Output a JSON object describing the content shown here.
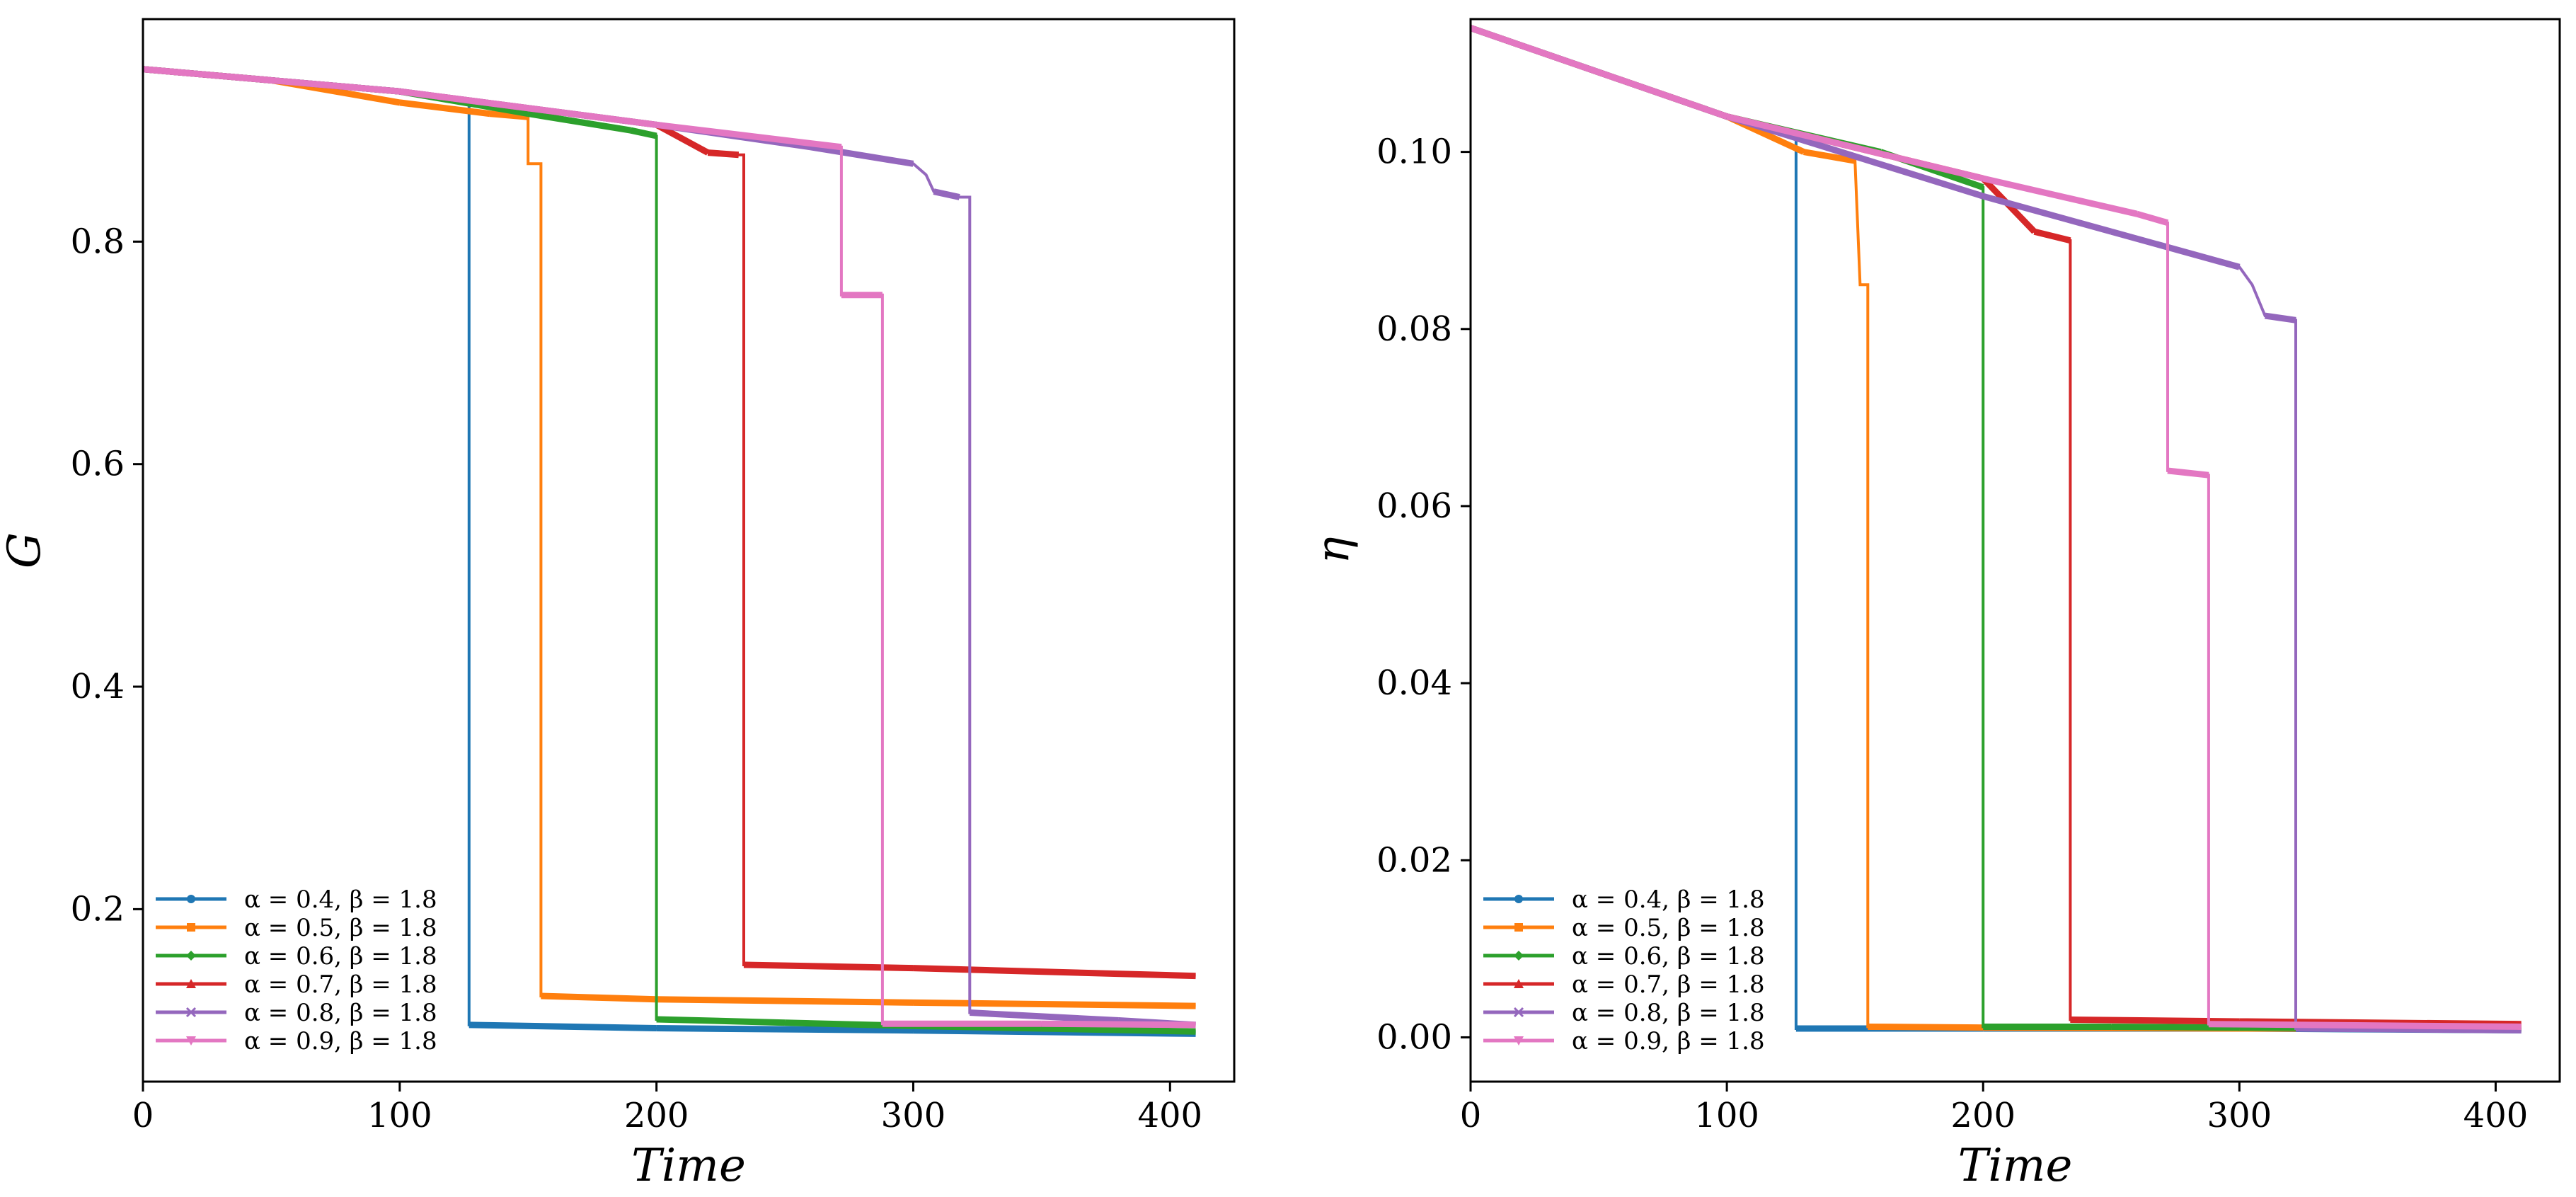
{
  "chart_data": [
    {
      "type": "line",
      "title": "",
      "xlabel": "Time",
      "ylabel": "G",
      "xlim": [
        0,
        425
      ],
      "ylim": [
        0.045,
        1.0
      ],
      "xticks": [
        0,
        100,
        200,
        300,
        400
      ],
      "yticks": [
        0.2,
        0.4,
        0.6,
        0.8
      ],
      "xtick_labels": [
        "0",
        "100",
        "200",
        "300",
        "400"
      ],
      "ytick_labels": [
        "0.2",
        "0.4",
        "0.6",
        "0.8"
      ],
      "grid": false,
      "legend_position": "bottom-left",
      "series": [
        {
          "name": "α = 0.4, β = 1.8",
          "color": "#1f77b4",
          "x": [
            0,
            50,
            100,
            127,
            127,
            200,
            300,
            410
          ],
          "y": [
            0.955,
            0.945,
            0.935,
            0.925,
            0.096,
            0.093,
            0.091,
            0.088
          ]
        },
        {
          "name": "α = 0.5, β = 1.8",
          "color": "#ff7f0e",
          "x": [
            0,
            50,
            100,
            135,
            150,
            150,
            152,
            152,
            155,
            155,
            200,
            300,
            410
          ],
          "y": [
            0.955,
            0.945,
            0.925,
            0.915,
            0.912,
            0.87,
            0.87,
            0.87,
            0.87,
            0.122,
            0.119,
            0.116,
            0.113
          ]
        },
        {
          "name": "α = 0.6, β = 1.8",
          "color": "#2ca02c",
          "x": [
            0,
            100,
            150,
            190,
            200,
            200,
            250,
            300,
            410
          ],
          "y": [
            0.955,
            0.935,
            0.915,
            0.9,
            0.895,
            0.101,
            0.098,
            0.095,
            0.09
          ]
        },
        {
          "name": "α = 0.7, β = 1.8",
          "color": "#d62728",
          "x": [
            0,
            100,
            200,
            220,
            232,
            234,
            234,
            300,
            410
          ],
          "y": [
            0.955,
            0.935,
            0.905,
            0.88,
            0.878,
            0.878,
            0.15,
            0.147,
            0.14
          ]
        },
        {
          "name": "α = 0.8, β = 1.8",
          "color": "#9467bd",
          "x": [
            0,
            100,
            200,
            260,
            300,
            305,
            308,
            318,
            322,
            322,
            380,
            410
          ],
          "y": [
            0.955,
            0.935,
            0.905,
            0.885,
            0.87,
            0.86,
            0.845,
            0.84,
            0.84,
            0.107,
            0.1,
            0.096
          ]
        },
        {
          "name": "α = 0.9, β = 1.8",
          "color": "#e377c2",
          "x": [
            0,
            100,
            200,
            272,
            272,
            288,
            288,
            350,
            410
          ],
          "y": [
            0.955,
            0.935,
            0.905,
            0.885,
            0.752,
            0.752,
            0.097,
            0.097,
            0.096
          ]
        }
      ]
    },
    {
      "type": "line",
      "title": "",
      "xlabel": "Time",
      "ylabel": "η",
      "xlim": [
        0,
        425
      ],
      "ylim": [
        -0.005,
        0.115
      ],
      "xticks": [
        0,
        100,
        200,
        300,
        400
      ],
      "yticks": [
        0.0,
        0.02,
        0.04,
        0.06,
        0.08,
        0.1
      ],
      "xtick_labels": [
        "0",
        "100",
        "200",
        "300",
        "400"
      ],
      "ytick_labels": [
        "0.00",
        "0.02",
        "0.04",
        "0.06",
        "0.08",
        "0.10"
      ],
      "grid": false,
      "legend_position": "bottom-left",
      "series": [
        {
          "name": "α = 0.4, β = 1.8",
          "color": "#1f77b4",
          "x": [
            0,
            50,
            100,
            127,
            127,
            200,
            300,
            410
          ],
          "y": [
            0.114,
            0.109,
            0.104,
            0.102,
            0.001,
            0.001,
            0.001,
            0.0008
          ]
        },
        {
          "name": "α = 0.5, β = 1.8",
          "color": "#ff7f0e",
          "x": [
            0,
            100,
            130,
            150,
            152,
            152,
            155,
            155,
            200,
            300,
            410
          ],
          "y": [
            0.114,
            0.104,
            0.1,
            0.099,
            0.085,
            0.085,
            0.085,
            0.0012,
            0.0011,
            0.001,
            0.001
          ]
        },
        {
          "name": "α = 0.6, β = 1.8",
          "color": "#2ca02c",
          "x": [
            0,
            100,
            160,
            200,
            200,
            250,
            300,
            410
          ],
          "y": [
            0.114,
            0.104,
            0.1,
            0.096,
            0.0012,
            0.0012,
            0.0011,
            0.001
          ]
        },
        {
          "name": "α = 0.7, β = 1.8",
          "color": "#d62728",
          "x": [
            0,
            100,
            200,
            220,
            234,
            234,
            300,
            410
          ],
          "y": [
            0.114,
            0.104,
            0.097,
            0.091,
            0.09,
            0.002,
            0.0018,
            0.0015
          ]
        },
        {
          "name": "α = 0.8, β = 1.8",
          "color": "#9467bd",
          "x": [
            0,
            100,
            200,
            250,
            300,
            305,
            310,
            322,
            322,
            410
          ],
          "y": [
            0.114,
            0.104,
            0.095,
            0.091,
            0.087,
            0.085,
            0.0815,
            0.081,
            0.001,
            0.0008
          ]
        },
        {
          "name": "α = 0.9, β = 1.8",
          "color": "#e377c2",
          "x": [
            0,
            100,
            200,
            260,
            272,
            272,
            288,
            288,
            410
          ],
          "y": [
            0.114,
            0.104,
            0.097,
            0.093,
            0.092,
            0.064,
            0.0635,
            0.0015,
            0.0012
          ]
        }
      ]
    }
  ]
}
